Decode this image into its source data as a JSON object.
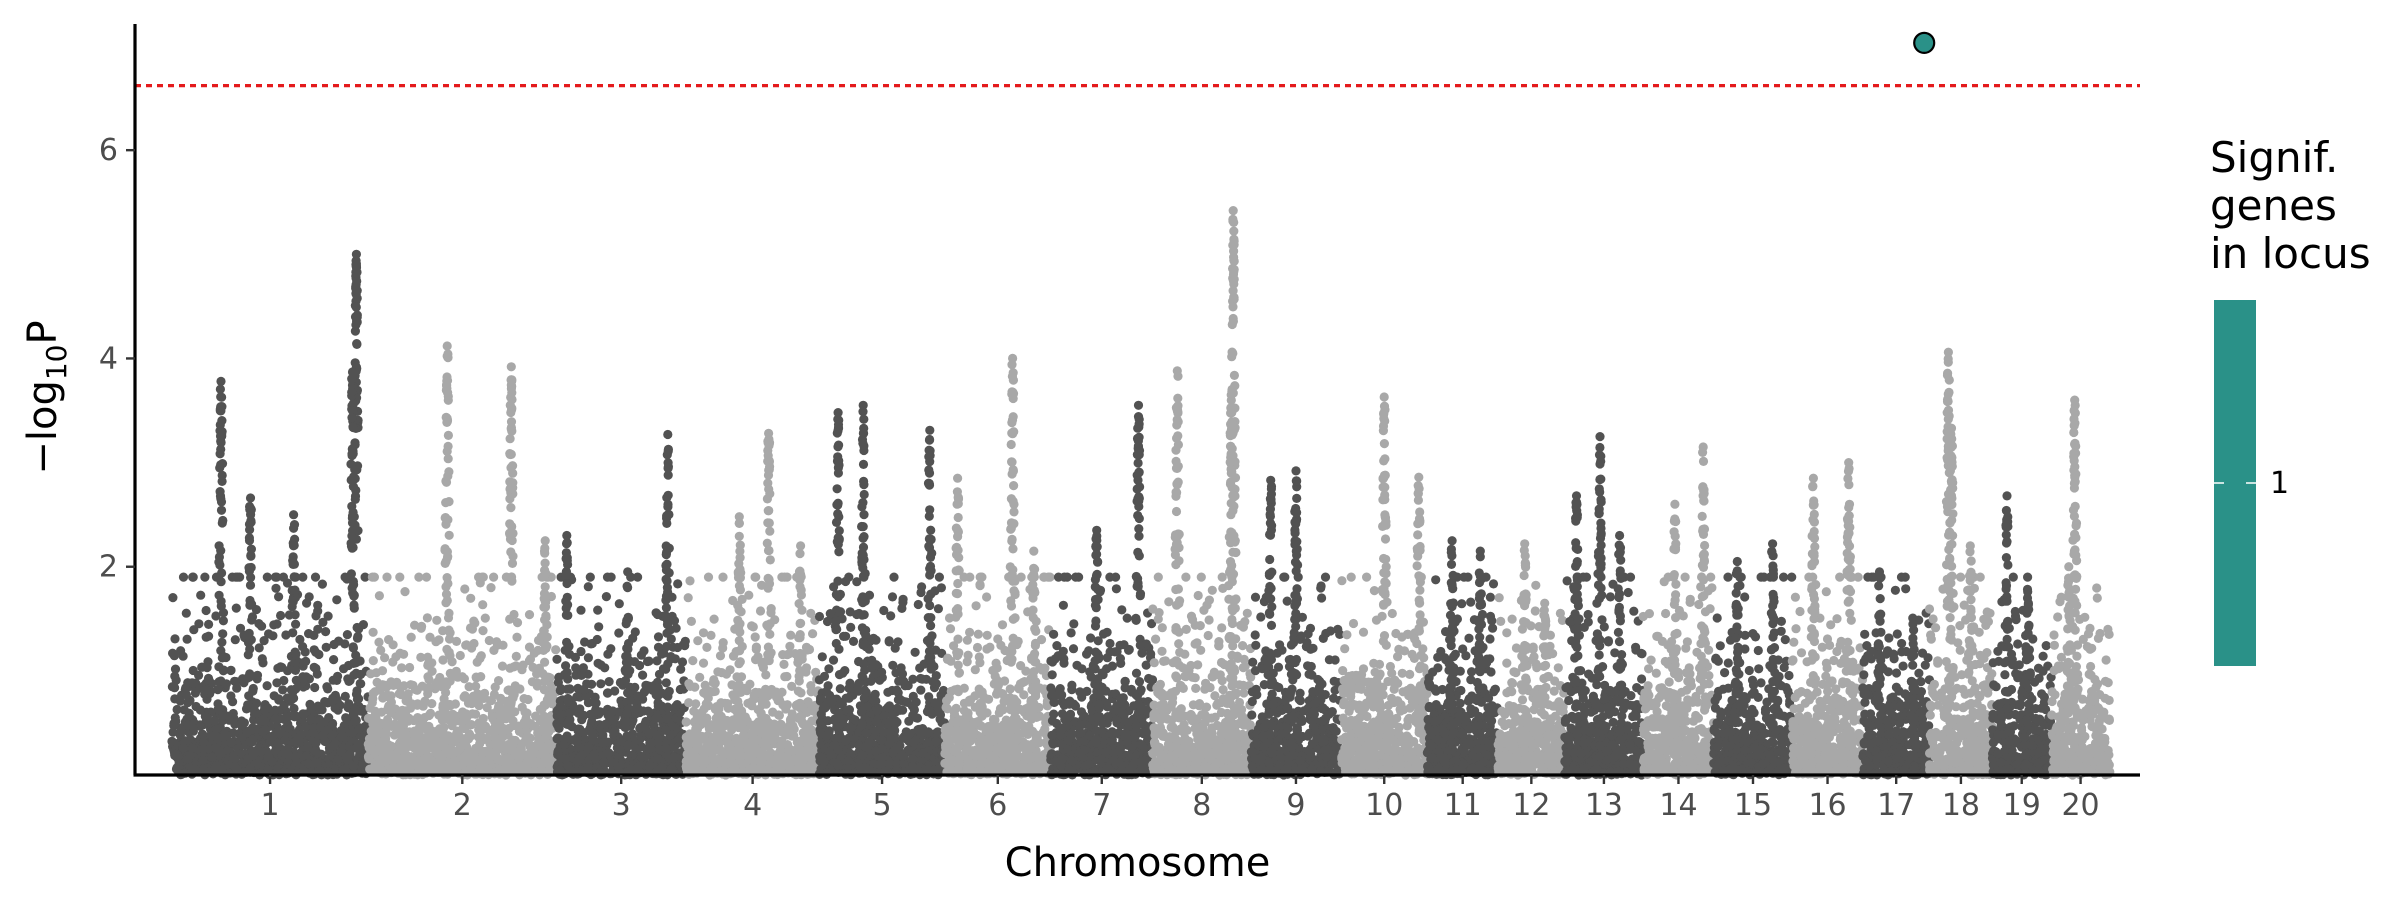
{
  "chart_data": {
    "type": "scatter",
    "subtype": "manhattan",
    "title": "",
    "xlabel": "Chromosome",
    "ylabel_prefix": "−log",
    "ylabel_sub": "10",
    "ylabel_suffix": "P",
    "ylim": [
      0,
      7.25
    ],
    "yticks": [
      2,
      4,
      6
    ],
    "grid": false,
    "threshold": {
      "value": 6.62,
      "color": "#e41a1c",
      "style": "dotted"
    },
    "colors": {
      "dark": "#525252",
      "light": "#a8a8a8",
      "highlight": "#2a9188",
      "axis": "#000000"
    },
    "chromosomes": [
      {
        "label": "1",
        "rel_length": 1.0,
        "shade": "dark",
        "peaks": [
          [
            0.25,
            3.78
          ],
          [
            0.4,
            2.66
          ],
          [
            0.62,
            2.5
          ],
          [
            0.94,
            5.0
          ],
          [
            0.92,
            3.87
          ]
        ]
      },
      {
        "label": "2",
        "rel_length": 0.96,
        "shade": "light",
        "peaks": [
          [
            0.42,
            4.12
          ],
          [
            0.76,
            3.92
          ],
          [
            0.94,
            2.25
          ]
        ]
      },
      {
        "label": "3",
        "rel_length": 0.66,
        "shade": "dark",
        "peaks": [
          [
            0.08,
            2.3
          ],
          [
            0.55,
            1.95
          ],
          [
            0.86,
            3.27
          ]
        ]
      },
      {
        "label": "4",
        "rel_length": 0.68,
        "shade": "light",
        "peaks": [
          [
            0.4,
            2.48
          ],
          [
            0.62,
            3.28
          ],
          [
            0.86,
            2.2
          ]
        ]
      },
      {
        "label": "5",
        "rel_length": 0.64,
        "shade": "dark",
        "peaks": [
          [
            0.15,
            3.48
          ],
          [
            0.35,
            3.55
          ],
          [
            0.88,
            3.31
          ]
        ]
      },
      {
        "label": "6",
        "rel_length": 0.54,
        "shade": "light",
        "peaks": [
          [
            0.12,
            2.85
          ],
          [
            0.64,
            4.0
          ],
          [
            0.84,
            2.15
          ]
        ]
      },
      {
        "label": "7",
        "rel_length": 0.52,
        "shade": "dark",
        "peaks": [
          [
            0.45,
            2.35
          ],
          [
            0.86,
            3.55
          ]
        ]
      },
      {
        "label": "8",
        "rel_length": 0.5,
        "shade": "light",
        "peaks": [
          [
            0.25,
            3.88
          ],
          [
            0.82,
            5.42
          ],
          [
            0.8,
            3.65
          ]
        ]
      },
      {
        "label": "9",
        "rel_length": 0.46,
        "shade": "dark",
        "peaks": [
          [
            0.22,
            2.83
          ],
          [
            0.5,
            2.92
          ]
        ]
      },
      {
        "label": "10",
        "rel_length": 0.44,
        "shade": "light",
        "peaks": [
          [
            0.5,
            3.63
          ],
          [
            0.9,
            2.86
          ]
        ]
      },
      {
        "label": "11",
        "rel_length": 0.36,
        "shade": "dark",
        "peaks": [
          [
            0.35,
            2.25
          ],
          [
            0.75,
            2.15
          ]
        ]
      },
      {
        "label": "12",
        "rel_length": 0.34,
        "shade": "light",
        "peaks": [
          [
            0.4,
            2.22
          ],
          [
            0.7,
            1.65
          ]
        ]
      },
      {
        "label": "13",
        "rel_length": 0.4,
        "shade": "dark",
        "peaks": [
          [
            0.15,
            2.68
          ],
          [
            0.45,
            3.25
          ],
          [
            0.7,
            2.3
          ]
        ]
      },
      {
        "label": "14",
        "rel_length": 0.36,
        "shade": "light",
        "peaks": [
          [
            0.45,
            2.6
          ],
          [
            0.85,
            3.15
          ]
        ]
      },
      {
        "label": "15",
        "rel_length": 0.4,
        "shade": "dark",
        "peaks": [
          [
            0.3,
            2.05
          ],
          [
            0.75,
            2.22
          ]
        ]
      },
      {
        "label": "16",
        "rel_length": 0.36,
        "shade": "light",
        "peaks": [
          [
            0.3,
            2.85
          ],
          [
            0.8,
            3.0
          ]
        ]
      },
      {
        "label": "17",
        "rel_length": 0.34,
        "shade": "dark",
        "peaks": [
          [
            0.25,
            1.95
          ],
          [
            0.75,
            1.45
          ]
        ]
      },
      {
        "label": "18",
        "rel_length": 0.32,
        "shade": "light",
        "peaks": [
          [
            0.3,
            4.06
          ],
          [
            0.35,
            3.33
          ],
          [
            0.65,
            2.2
          ]
        ]
      },
      {
        "label": "19",
        "rel_length": 0.3,
        "shade": "dark",
        "peaks": [
          [
            0.25,
            2.68
          ],
          [
            0.6,
            1.9
          ]
        ]
      },
      {
        "label": "20",
        "rel_length": 0.3,
        "shade": "light",
        "peaks": [
          [
            0.4,
            3.6
          ],
          [
            0.3,
            2.0
          ]
        ]
      }
    ],
    "significant_points": [
      {
        "chromosome": "17",
        "position": 0.92,
        "y": 7.03
      }
    ],
    "legend": {
      "title": [
        "Signif.",
        "genes",
        "in locus"
      ],
      "labels": [
        "1"
      ],
      "color": "#2a9188",
      "placement": "right"
    }
  }
}
